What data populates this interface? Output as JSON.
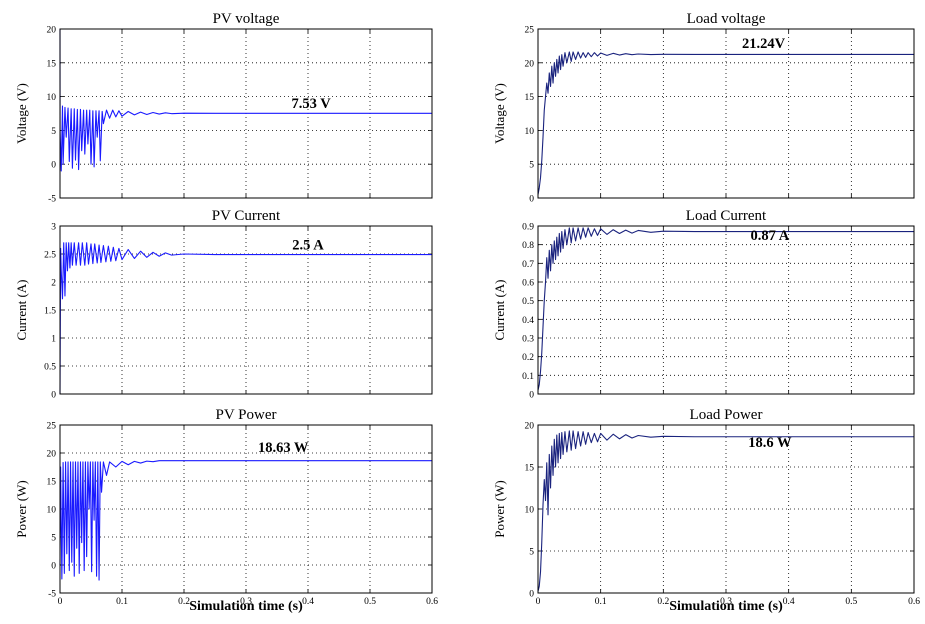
{
  "figure": {
    "xlabel": "Simulation time (s)"
  },
  "chart_data": [
    {
      "type": "line",
      "title": "PV voltage",
      "xlabel": "",
      "ylabel": "Voltage (V)",
      "xlim": [
        0,
        0.6
      ],
      "ylim": [
        -5,
        20
      ],
      "xticks": [
        "",
        "",
        "",
        "",
        "",
        "",
        ""
      ],
      "yticks": [
        "-5",
        "0",
        "5",
        "10",
        "15",
        "20"
      ],
      "grid": true,
      "annotation": {
        "text": "7.53 V",
        "x": 0.405,
        "y": 8.3
      },
      "series": [
        {
          "color": "#1a1aff",
          "x": [
            0,
            0.0001,
            0.002,
            0.004,
            0.005,
            0.008,
            0.01,
            0.013,
            0.015,
            0.018,
            0.02,
            0.023,
            0.025,
            0.028,
            0.03,
            0.033,
            0.035,
            0.038,
            0.04,
            0.043,
            0.045,
            0.048,
            0.05,
            0.053,
            0.055,
            0.058,
            0.06,
            0.063,
            0.065,
            0.068,
            0.07,
            0.075,
            0.08,
            0.085,
            0.09,
            0.095,
            0.1,
            0.11,
            0.12,
            0.13,
            0.14,
            0.15,
            0.16,
            0.17,
            0.18,
            0.2,
            0.25,
            0.3,
            0.6
          ],
          "y": [
            20,
            5.0,
            -1.0,
            8.6,
            0.0,
            8.4,
            4.0,
            8.3,
            0.4,
            8.2,
            -0.6,
            8.2,
            0.6,
            8.1,
            -0.8,
            8.1,
            2.0,
            8.0,
            1.5,
            8.0,
            3.0,
            8.0,
            0.0,
            7.9,
            -0.4,
            7.9,
            4.0,
            7.9,
            0.5,
            7.8,
            6.0,
            8.0,
            6.8,
            8.0,
            7.0,
            7.9,
            7.1,
            7.8,
            7.3,
            7.7,
            7.35,
            7.65,
            7.42,
            7.6,
            7.48,
            7.55,
            7.53,
            7.53,
            7.53
          ]
        }
      ]
    },
    {
      "type": "line",
      "title": "Load voltage",
      "xlabel": "",
      "ylabel": "Voltage (V)",
      "xlim": [
        0,
        0.6
      ],
      "ylim": [
        0,
        25
      ],
      "xticks": [
        "",
        "",
        "",
        "",
        "",
        "",
        ""
      ],
      "yticks": [
        "0",
        "5",
        "10",
        "15",
        "20",
        "25"
      ],
      "grid": true,
      "annotation": {
        "text": "21.24V",
        "x": 0.36,
        "y": 22.2
      },
      "series": [
        {
          "color": "#1a237e",
          "x": [
            0,
            0.002,
            0.004,
            0.006,
            0.008,
            0.01,
            0.012,
            0.014,
            0.016,
            0.018,
            0.02,
            0.022,
            0.024,
            0.026,
            0.028,
            0.03,
            0.032,
            0.034,
            0.036,
            0.038,
            0.04,
            0.043,
            0.046,
            0.05,
            0.053,
            0.056,
            0.06,
            0.064,
            0.068,
            0.072,
            0.076,
            0.08,
            0.085,
            0.09,
            0.095,
            0.1,
            0.11,
            0.12,
            0.13,
            0.14,
            0.15,
            0.16,
            0.18,
            0.2,
            0.25,
            0.6
          ],
          "y": [
            0.5,
            1.5,
            3.0,
            5.5,
            9.0,
            13.0,
            15.0,
            17.0,
            15.5,
            18.5,
            16.5,
            19.5,
            17.0,
            20.0,
            18.0,
            20.5,
            18.5,
            21.0,
            19.0,
            21.2,
            19.5,
            21.5,
            20.0,
            21.6,
            20.2,
            21.6,
            20.5,
            21.6,
            20.7,
            21.5,
            20.8,
            21.5,
            20.9,
            21.5,
            21.0,
            21.45,
            21.1,
            21.4,
            21.15,
            21.35,
            21.2,
            21.3,
            21.22,
            21.25,
            21.24,
            21.24
          ]
        }
      ]
    },
    {
      "type": "line",
      "title": "PV Current",
      "xlabel": "",
      "ylabel": "Current (A)",
      "xlim": [
        0,
        0.6
      ],
      "ylim": [
        0,
        3
      ],
      "xticks": [
        "",
        "",
        "",
        "",
        "",
        "",
        ""
      ],
      "yticks": [
        "0",
        "0.5",
        "1",
        "1.5",
        "2",
        "2.5",
        "3"
      ],
      "grid": true,
      "annotation": {
        "text": "2.5 A",
        "x": 0.4,
        "y": 2.58
      },
      "series": [
        {
          "color": "#1a1aff",
          "x": [
            0,
            0.001,
            0.002,
            0.004,
            0.006,
            0.008,
            0.01,
            0.012,
            0.014,
            0.016,
            0.018,
            0.02,
            0.023,
            0.026,
            0.03,
            0.033,
            0.036,
            0.04,
            0.043,
            0.046,
            0.05,
            0.053,
            0.056,
            0.06,
            0.063,
            0.066,
            0.07,
            0.074,
            0.078,
            0.082,
            0.086,
            0.09,
            0.095,
            0.1,
            0.11,
            0.12,
            0.13,
            0.14,
            0.15,
            0.16,
            0.17,
            0.18,
            0.2,
            0.25,
            0.6
          ],
          "y": [
            0,
            2.6,
            2.2,
            1.7,
            2.7,
            1.75,
            2.7,
            2.2,
            2.7,
            2.25,
            2.7,
            2.3,
            2.7,
            2.3,
            2.7,
            2.3,
            2.7,
            2.3,
            2.7,
            2.32,
            2.68,
            2.33,
            2.68,
            2.34,
            2.66,
            2.35,
            2.65,
            2.36,
            2.64,
            2.37,
            2.62,
            2.38,
            2.6,
            2.4,
            2.58,
            2.42,
            2.55,
            2.44,
            2.53,
            2.46,
            2.52,
            2.48,
            2.5,
            2.49,
            2.49
          ]
        }
      ]
    },
    {
      "type": "line",
      "title": "Load Current",
      "xlabel": "",
      "ylabel": "Current (A)",
      "xlim": [
        0,
        0.6
      ],
      "ylim": [
        0,
        0.9
      ],
      "xticks": [
        "",
        "",
        "",
        "",
        "",
        "",
        ""
      ],
      "yticks": [
        "0",
        "0.1",
        "0.2",
        "0.3",
        "0.4",
        "0.5",
        "0.6",
        "0.7",
        "0.8",
        "0.9"
      ],
      "grid": true,
      "annotation": {
        "text": "0.87 A",
        "x": 0.37,
        "y": 0.825
      },
      "series": [
        {
          "color": "#1a237e",
          "x": [
            0,
            0.002,
            0.004,
            0.006,
            0.008,
            0.01,
            0.012,
            0.014,
            0.016,
            0.018,
            0.02,
            0.022,
            0.024,
            0.026,
            0.028,
            0.03,
            0.032,
            0.034,
            0.036,
            0.038,
            0.04,
            0.043,
            0.046,
            0.05,
            0.053,
            0.056,
            0.06,
            0.064,
            0.068,
            0.072,
            0.076,
            0.08,
            0.085,
            0.09,
            0.095,
            0.1,
            0.11,
            0.12,
            0.13,
            0.14,
            0.15,
            0.16,
            0.18,
            0.2,
            0.25,
            0.6
          ],
          "y": [
            0.02,
            0.05,
            0.12,
            0.22,
            0.36,
            0.5,
            0.6,
            0.73,
            0.62,
            0.77,
            0.66,
            0.8,
            0.7,
            0.82,
            0.72,
            0.84,
            0.74,
            0.86,
            0.76,
            0.87,
            0.78,
            0.88,
            0.8,
            0.89,
            0.81,
            0.89,
            0.82,
            0.89,
            0.83,
            0.89,
            0.84,
            0.89,
            0.845,
            0.885,
            0.85,
            0.885,
            0.855,
            0.88,
            0.86,
            0.878,
            0.862,
            0.876,
            0.866,
            0.872,
            0.87,
            0.87
          ]
        }
      ]
    },
    {
      "type": "line",
      "title": "PV Power",
      "xlabel": "",
      "ylabel": "Power (W)",
      "xlim": [
        0,
        0.6
      ],
      "ylim": [
        -5,
        25
      ],
      "xticks": [
        "0",
        "0.1",
        "0.2",
        "0.3",
        "0.4",
        "0.5",
        "0.6"
      ],
      "yticks": [
        "-5",
        "0",
        "5",
        "10",
        "15",
        "20",
        "25"
      ],
      "grid": true,
      "annotation": {
        "text": "18.63 W",
        "x": 0.36,
        "y": 20.2
      },
      "series": [
        {
          "color": "#1a1aff",
          "x": [
            0,
            0.001,
            0.003,
            0.005,
            0.007,
            0.009,
            0.011,
            0.013,
            0.015,
            0.017,
            0.019,
            0.021,
            0.023,
            0.025,
            0.027,
            0.029,
            0.031,
            0.033,
            0.035,
            0.037,
            0.039,
            0.041,
            0.043,
            0.045,
            0.047,
            0.049,
            0.051,
            0.053,
            0.055,
            0.057,
            0.059,
            0.061,
            0.063,
            0.065,
            0.067,
            0.07,
            0.075,
            0.08,
            0.09,
            0.1,
            0.11,
            0.12,
            0.13,
            0.14,
            0.15,
            0.16,
            0.2,
            0.6
          ],
          "y": [
            0,
            17.5,
            -2.5,
            18.3,
            -1.5,
            18.4,
            2.0,
            18.4,
            -1.0,
            18.4,
            0.5,
            18.4,
            -2.0,
            18.4,
            3.0,
            18.4,
            -1.5,
            18.4,
            4.0,
            18.4,
            -1.0,
            18.4,
            1.5,
            18.4,
            10.0,
            18.4,
            -1.2,
            18.4,
            8.0,
            18.4,
            -2.0,
            18.4,
            -2.7,
            18.4,
            13.0,
            18.4,
            16.0,
            18.4,
            17.5,
            18.5,
            17.9,
            18.5,
            18.2,
            18.55,
            18.45,
            18.62,
            18.63,
            18.63
          ]
        }
      ]
    },
    {
      "type": "line",
      "title": "Load Power",
      "xlabel": "",
      "ylabel": "Power (W)",
      "xlim": [
        0,
        0.6
      ],
      "ylim": [
        0,
        20
      ],
      "xticks": [
        "0",
        "0.1",
        "0.2",
        "0.3",
        "0.4",
        "0.5",
        "0.6"
      ],
      "yticks": [
        "0",
        "5",
        "10",
        "15",
        "20"
      ],
      "grid": true,
      "annotation": {
        "text": "18.6 W",
        "x": 0.37,
        "y": 17.4
      },
      "series": [
        {
          "color": "#1a237e",
          "x": [
            0,
            0.002,
            0.004,
            0.006,
            0.008,
            0.01,
            0.012,
            0.014,
            0.016,
            0.018,
            0.02,
            0.022,
            0.024,
            0.026,
            0.028,
            0.03,
            0.032,
            0.034,
            0.036,
            0.038,
            0.04,
            0.043,
            0.046,
            0.05,
            0.053,
            0.056,
            0.06,
            0.064,
            0.068,
            0.072,
            0.076,
            0.08,
            0.085,
            0.09,
            0.095,
            0.1,
            0.11,
            0.12,
            0.13,
            0.14,
            0.15,
            0.16,
            0.18,
            0.2,
            0.25,
            0.6
          ],
          "y": [
            0.2,
            0.8,
            2.5,
            6.0,
            10.5,
            13.5,
            11.0,
            15.5,
            9.3,
            16.5,
            12.5,
            17.5,
            14.0,
            18.3,
            15.0,
            18.8,
            15.5,
            19.0,
            16.0,
            19.1,
            16.5,
            19.2,
            16.8,
            19.3,
            17.0,
            19.3,
            17.2,
            19.2,
            17.5,
            19.2,
            17.7,
            19.1,
            17.9,
            19.0,
            18.0,
            19.0,
            18.2,
            18.9,
            18.35,
            18.85,
            18.45,
            18.75,
            18.55,
            18.65,
            18.6,
            18.6
          ]
        }
      ]
    }
  ]
}
